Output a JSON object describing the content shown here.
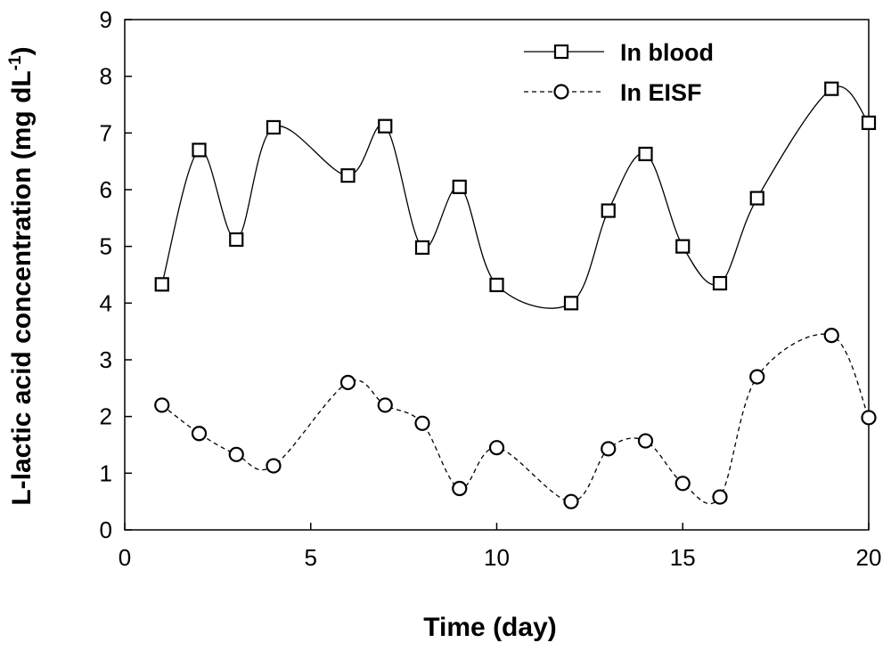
{
  "chart_data": {
    "type": "line",
    "title": "",
    "xlabel": "Time (day)",
    "ylabel_main": "L-lactic acid concentration (mg dL",
    "ylabel_sup": "-1",
    "ylabel_close": ")",
    "xlim": [
      0,
      20
    ],
    "ylim": [
      0,
      9
    ],
    "xticks": [
      0,
      5,
      10,
      15,
      20
    ],
    "yticks": [
      0,
      1,
      2,
      3,
      4,
      5,
      6,
      7,
      8,
      9
    ],
    "grid": false,
    "legend_position": "top-right",
    "series": [
      {
        "name": "In blood",
        "marker": "square",
        "line_style": "solid",
        "x": [
          1,
          2,
          3,
          4,
          6,
          7,
          8,
          9,
          10,
          12,
          13,
          14,
          15,
          16,
          17,
          19,
          20
        ],
        "y": [
          4.33,
          6.7,
          5.12,
          7.1,
          6.25,
          7.12,
          4.98,
          6.05,
          4.32,
          4.0,
          5.63,
          6.63,
          5.0,
          4.35,
          5.85,
          7.78,
          7.18
        ]
      },
      {
        "name": "In EISF",
        "marker": "circle",
        "line_style": "dashed",
        "x": [
          1,
          2,
          3,
          4,
          6,
          7,
          8,
          9,
          10,
          12,
          13,
          14,
          15,
          16,
          17,
          19,
          20
        ],
        "y": [
          2.2,
          1.7,
          1.33,
          1.13,
          2.6,
          2.2,
          1.88,
          0.73,
          1.45,
          0.5,
          1.43,
          1.57,
          0.82,
          0.58,
          2.7,
          3.43,
          1.98
        ]
      }
    ]
  }
}
